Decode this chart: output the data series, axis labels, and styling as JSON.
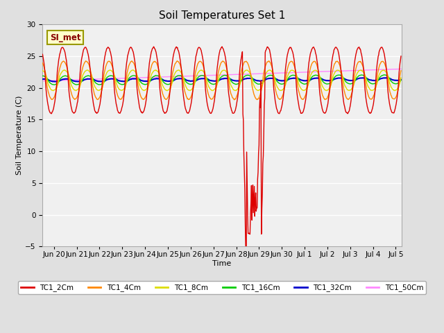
{
  "title": "Soil Temperatures Set 1",
  "xlabel": "Time",
  "ylabel": "Soil Temperature (C)",
  "ylim": [
    -5,
    30
  ],
  "yticks": [
    -5,
    0,
    5,
    10,
    15,
    20,
    25,
    30
  ],
  "annotation_text": "SI_met",
  "colors": {
    "TC1_2Cm": "#dd0000",
    "TC1_4Cm": "#ff8800",
    "TC1_8Cm": "#dddd00",
    "TC1_16Cm": "#00cc00",
    "TC1_32Cm": "#0000cc",
    "TC1_50Cm": "#ff88ff"
  },
  "linewidths": {
    "TC1_2Cm": 1.0,
    "TC1_4Cm": 1.0,
    "TC1_8Cm": 1.0,
    "TC1_16Cm": 1.0,
    "TC1_32Cm": 1.5,
    "TC1_50Cm": 1.0
  },
  "background_color": "#e0e0e0",
  "plot_background": "#f0f0f0",
  "grid_color": "#ffffff",
  "title_fontsize": 11,
  "label_fontsize": 8,
  "tick_fontsize": 7.5,
  "tick_labels": [
    "Jun 20",
    "Jun 21",
    "Jun 22",
    "Jun 23",
    "Jun 24",
    "Jun 25",
    "Jun 26",
    "Jun 27",
    "Jun 28",
    "Jun 29",
    "Jun 30",
    "Jul 1",
    "Jul 2",
    "Jul 3",
    "Jul 4",
    "Jul 5"
  ]
}
